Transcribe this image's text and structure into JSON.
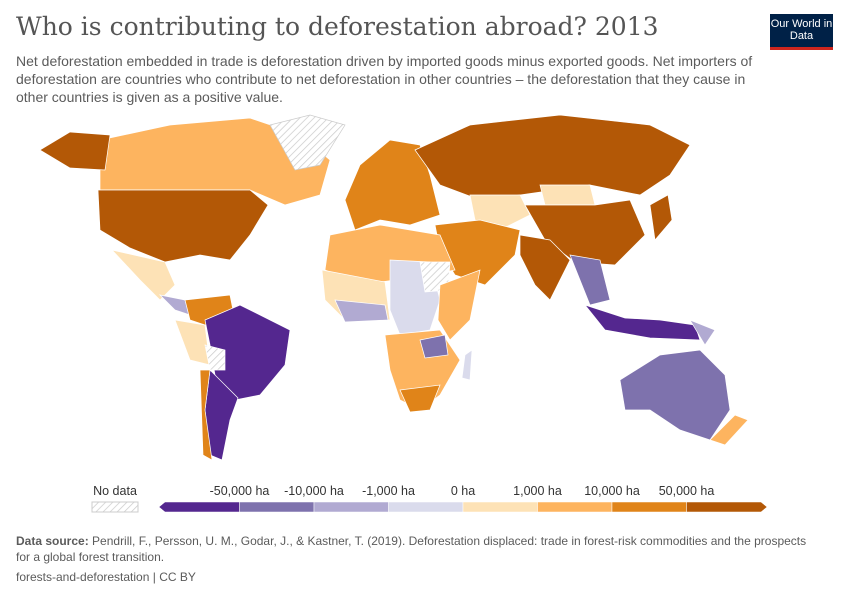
{
  "header": {
    "title": "Who is contributing to deforestation abroad? 2013",
    "subtitle": "Net deforestation embedded in trade is deforestation driven by imported goods minus exported goods. Net importers of deforestation are countries who contribute to net deforestation in other countries – the deforestation that they cause in other countries is given as a positive value.",
    "logo": "Our World in Data"
  },
  "legend": {
    "no_data": "No data",
    "labels": [
      "-50,000 ha",
      "-10,000 ha",
      "-1,000 ha",
      "0 ha",
      "1,000 ha",
      "10,000 ha",
      "50,000 ha"
    ],
    "colors": [
      "#54278f",
      "#7e72ad",
      "#b1aad2",
      "#dadbec",
      "#fde2b6",
      "#fdb45f",
      "#e08419",
      "#b35806"
    ],
    "no_data_pattern": "hatched-gray"
  },
  "footer": {
    "source_label": "Data source:",
    "source_text": " Pendrill, F., Persson, U. M., Godar, J., & Kastner, T. (2019). Deforestation displaced: trade in forest-risk commodities and the prospects for a global forest transition.",
    "slug": "forests-and-deforestation | CC BY"
  }
}
